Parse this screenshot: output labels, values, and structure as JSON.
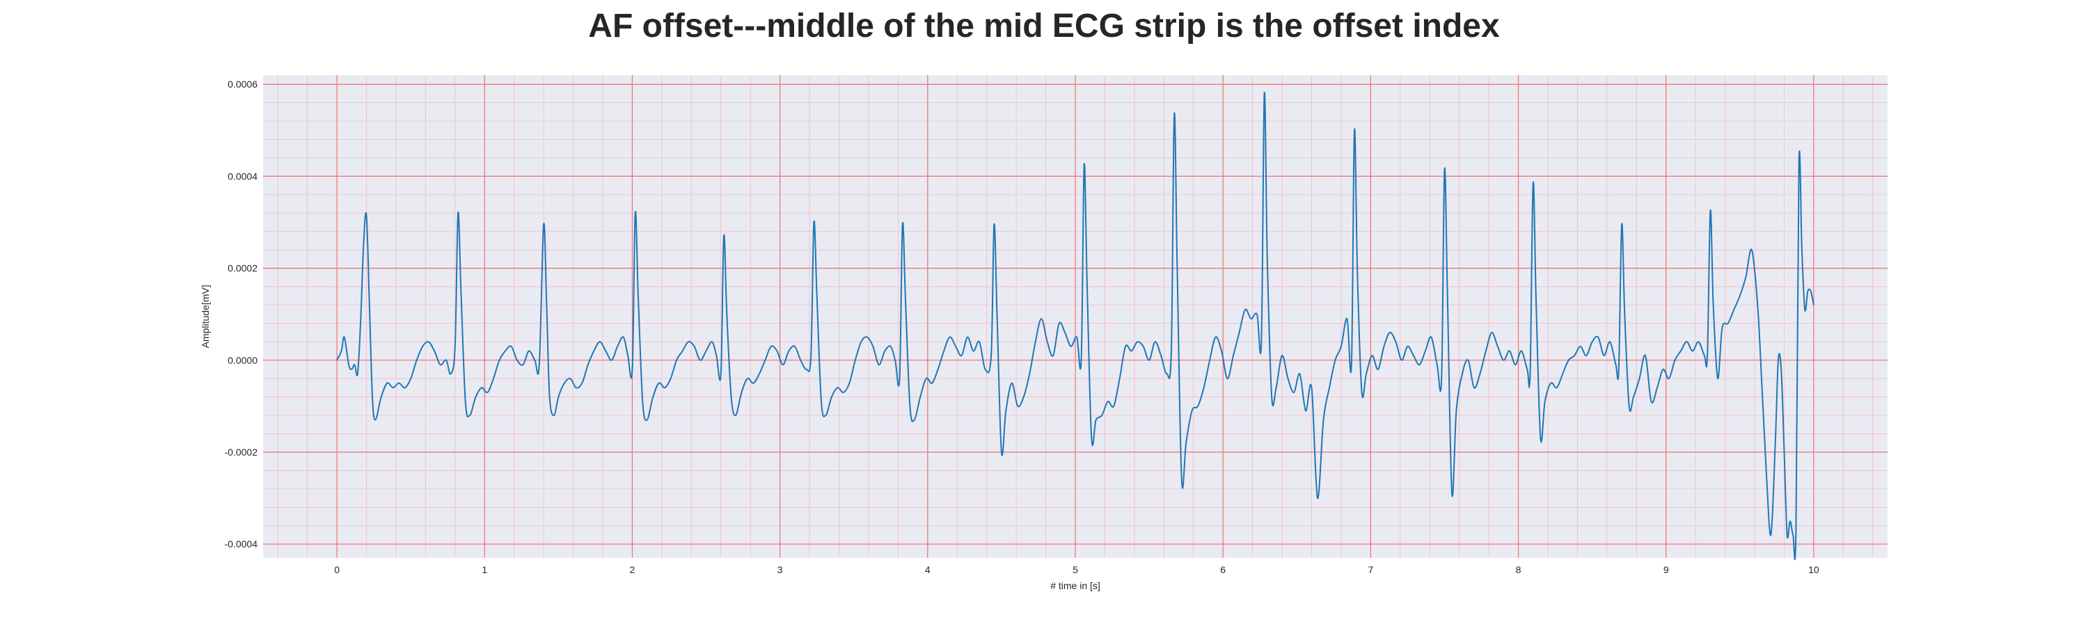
{
  "chart_data": {
    "type": "line",
    "title": "AF offset---middle of the mid ECG strip is the offset index",
    "xlabel": "# time in [s]",
    "ylabel": "Amplitude[mV]",
    "xlim": [
      -0.5,
      10.5
    ],
    "ylim": [
      -0.00043,
      0.00062
    ],
    "xticks": [
      0,
      1,
      2,
      3,
      4,
      5,
      6,
      7,
      8,
      9,
      10
    ],
    "xtick_labels": [
      "0",
      "1",
      "2",
      "3",
      "4",
      "5",
      "6",
      "7",
      "8",
      "9",
      "10"
    ],
    "yticks": [
      -0.0004,
      -0.0002,
      0.0,
      0.0002,
      0.0004,
      0.0006
    ],
    "ytick_labels": [
      "-0.0004",
      "-0.0002",
      "0.0000",
      "0.0002",
      "0.0004",
      "0.0006"
    ],
    "grid": true,
    "minor_grid": true,
    "legend": "none",
    "colors": {
      "line": "#1f77b4",
      "major_grid": "#f07070",
      "minor_grid": "#f5b8c4",
      "plot_bg": "#eaeaf2"
    },
    "r_peaks": [
      {
        "t": 0.2,
        "amp": 0.000315
      },
      {
        "t": 0.8,
        "amp": 0.00032
      },
      {
        "t": 1.4,
        "amp": 0.000295
      },
      {
        "t": 2.02,
        "amp": 0.00032
      },
      {
        "t": 2.62,
        "amp": 0.00027
      },
      {
        "t": 3.23,
        "amp": 0.0003
      },
      {
        "t": 3.83,
        "amp": 0.000295
      },
      {
        "t": 4.45,
        "amp": 0.000295
      },
      {
        "t": 5.06,
        "amp": 0.000425
      },
      {
        "t": 5.67,
        "amp": 0.000535
      },
      {
        "t": 6.28,
        "amp": 0.00058
      },
      {
        "t": 6.89,
        "amp": 0.0005
      },
      {
        "t": 7.5,
        "amp": 0.000415
      },
      {
        "t": 8.1,
        "amp": 0.000385
      },
      {
        "t": 8.7,
        "amp": 0.000295
      },
      {
        "t": 9.3,
        "amp": 0.000325
      },
      {
        "t": 9.88,
        "amp": 0.00043
      }
    ],
    "series": [
      {
        "x": [
          0.0,
          0.03,
          0.05,
          0.08,
          0.1,
          0.12,
          0.14,
          0.16,
          0.18,
          0.2,
          0.22,
          0.24,
          0.26,
          0.3,
          0.34,
          0.38,
          0.42,
          0.46,
          0.5,
          0.54,
          0.58,
          0.62,
          0.66,
          0.7,
          0.74,
          0.77,
          0.8,
          0.82,
          0.84,
          0.87,
          0.9,
          0.94,
          0.98,
          1.02,
          1.06,
          1.1,
          1.14,
          1.18,
          1.22,
          1.26,
          1.3,
          1.34,
          1.37,
          1.4,
          1.42,
          1.44,
          1.47,
          1.5,
          1.54,
          1.58,
          1.62,
          1.66,
          1.7,
          1.74,
          1.78,
          1.82,
          1.86,
          1.9,
          1.94,
          1.97,
          2.0,
          2.02,
          2.04,
          2.07,
          2.1,
          2.14,
          2.18,
          2.22,
          2.26,
          2.3,
          2.34,
          2.38,
          2.42,
          2.46,
          2.5,
          2.54,
          2.57,
          2.6,
          2.62,
          2.64,
          2.67,
          2.7,
          2.74,
          2.78,
          2.82,
          2.86,
          2.9,
          2.94,
          2.98,
          3.02,
          3.06,
          3.1,
          3.14,
          3.18,
          3.21,
          3.23,
          3.25,
          3.28,
          3.31,
          3.35,
          3.39,
          3.43,
          3.47,
          3.51,
          3.55,
          3.59,
          3.63,
          3.67,
          3.71,
          3.75,
          3.78,
          3.81,
          3.83,
          3.85,
          3.88,
          3.91,
          3.95,
          3.99,
          4.03,
          4.07,
          4.11,
          4.15,
          4.19,
          4.23,
          4.27,
          4.31,
          4.35,
          4.39,
          4.43,
          4.45,
          4.47,
          4.5,
          4.53,
          4.57,
          4.61,
          4.65,
          4.69,
          4.73,
          4.77,
          4.81,
          4.85,
          4.89,
          4.93,
          4.97,
          5.01,
          5.04,
          5.06,
          5.08,
          5.11,
          5.14,
          5.18,
          5.22,
          5.26,
          5.3,
          5.34,
          5.38,
          5.42,
          5.46,
          5.5,
          5.54,
          5.58,
          5.62,
          5.65,
          5.67,
          5.69,
          5.72,
          5.75,
          5.79,
          5.83,
          5.87,
          5.91,
          5.95,
          5.99,
          6.03,
          6.07,
          6.11,
          6.15,
          6.19,
          6.23,
          6.26,
          6.28,
          6.3,
          6.33,
          6.36,
          6.4,
          6.44,
          6.48,
          6.52,
          6.56,
          6.6,
          6.64,
          6.68,
          6.72,
          6.76,
          6.8,
          6.84,
          6.87,
          6.89,
          6.91,
          6.94,
          6.97,
          7.01,
          7.05,
          7.09,
          7.13,
          7.17,
          7.21,
          7.25,
          7.29,
          7.33,
          7.37,
          7.41,
          7.45,
          7.48,
          7.5,
          7.52,
          7.55,
          7.58,
          7.62,
          7.66,
          7.7,
          7.74,
          7.78,
          7.82,
          7.86,
          7.9,
          7.94,
          7.98,
          8.02,
          8.06,
          8.08,
          8.1,
          8.12,
          8.15,
          8.18,
          8.22,
          8.26,
          8.3,
          8.34,
          8.38,
          8.42,
          8.46,
          8.5,
          8.54,
          8.58,
          8.62,
          8.66,
          8.68,
          8.7,
          8.72,
          8.75,
          8.78,
          8.82,
          8.86,
          8.9,
          8.94,
          8.98,
          9.02,
          9.06,
          9.1,
          9.14,
          9.18,
          9.22,
          9.26,
          9.28,
          9.3,
          9.32,
          9.35,
          9.38,
          9.42,
          9.46,
          9.5,
          9.54,
          9.58,
          9.62,
          9.65,
          9.68,
          9.71,
          9.74,
          9.76,
          9.78,
          9.8,
          9.82,
          9.84,
          9.86,
          9.88,
          9.9,
          9.92,
          9.94,
          9.96,
          9.98,
          10.0
        ],
        "y": [
          0.0,
          2e-05,
          5e-05,
          -1e-05,
          -2e-05,
          -1e-05,
          -3e-05,
          8e-05,
          0.00025,
          0.000315,
          0.00012,
          -8e-05,
          -0.00013,
          -8e-05,
          -5e-05,
          -6e-05,
          -5e-05,
          -6e-05,
          -4e-05,
          0.0,
          3e-05,
          4e-05,
          2e-05,
          -1e-05,
          0.0,
          -3e-05,
          3e-05,
          0.00032,
          0.00015,
          -9e-05,
          -0.00012,
          -8e-05,
          -6e-05,
          -7e-05,
          -4e-05,
          0.0,
          2e-05,
          3e-05,
          0.0,
          -1e-05,
          2e-05,
          0.0,
          -1e-05,
          0.000295,
          0.00012,
          -8e-05,
          -0.00012,
          -8e-05,
          -5e-05,
          -4e-05,
          -6e-05,
          -5e-05,
          -1e-05,
          2e-05,
          4e-05,
          2e-05,
          0.0,
          3e-05,
          5e-05,
          1e-05,
          -2e-05,
          0.00032,
          0.00014,
          -9e-05,
          -0.00013,
          -8e-05,
          -5e-05,
          -6e-05,
          -4e-05,
          0.0,
          2e-05,
          4e-05,
          3e-05,
          0.0,
          2e-05,
          4e-05,
          1e-05,
          -3e-05,
          0.00027,
          0.0001,
          -8e-05,
          -0.00012,
          -7e-05,
          -4e-05,
          -5e-05,
          -3e-05,
          0.0,
          3e-05,
          2e-05,
          -1e-05,
          2e-05,
          3e-05,
          0.0,
          -2e-05,
          1e-05,
          0.0003,
          0.00014,
          -9e-05,
          -0.00012,
          -8e-05,
          -6e-05,
          -7e-05,
          -5e-05,
          0.0,
          4e-05,
          5e-05,
          3e-05,
          -1e-05,
          2e-05,
          3e-05,
          0.0,
          -4e-05,
          0.000295,
          0.00013,
          -0.0001,
          -0.00013,
          -8e-05,
          -4e-05,
          -5e-05,
          -2e-05,
          2e-05,
          5e-05,
          3e-05,
          1e-05,
          5e-05,
          2e-05,
          4e-05,
          -2e-05,
          1e-05,
          0.000295,
          0.0001,
          -0.0002,
          -0.00011,
          -5e-05,
          -0.0001,
          -8e-05,
          -3e-05,
          4e-05,
          9e-05,
          4e-05,
          1e-05,
          8e-05,
          6e-05,
          3e-05,
          5e-05,
          0.0,
          0.000425,
          0.00016,
          -0.00017,
          -0.00013,
          -0.00012,
          -9e-05,
          -0.0001,
          -4e-05,
          3e-05,
          2e-05,
          4e-05,
          3e-05,
          0.0,
          4e-05,
          1e-05,
          -3e-05,
          2e-05,
          0.000535,
          0.0002,
          -0.00026,
          -0.00018,
          -0.00011,
          -0.0001,
          -6e-05,
          0.0,
          5e-05,
          2e-05,
          -4e-05,
          1e-05,
          6e-05,
          0.00011,
          9e-05,
          0.0001,
          4e-05,
          0.00058,
          0.00022,
          -8e-05,
          -6e-05,
          1e-05,
          -4e-05,
          -7e-05,
          -3e-05,
          -0.00011,
          -6e-05,
          -0.0003,
          -0.00013,
          -6e-05,
          0.0,
          3e-05,
          9e-05,
          -1e-05,
          0.0005,
          0.00019,
          -7e-05,
          -3e-05,
          1e-05,
          -2e-05,
          3e-05,
          6e-05,
          4e-05,
          0.0,
          3e-05,
          1e-05,
          -1e-05,
          2e-05,
          5e-05,
          -1e-05,
          -4e-05,
          0.000415,
          0.00014,
          -0.00029,
          -0.00011,
          -3e-05,
          0.0,
          -6e-05,
          -3e-05,
          2e-05,
          6e-05,
          3e-05,
          0.0,
          2e-05,
          -1e-05,
          2e-05,
          -2e-05,
          -3e-05,
          0.000385,
          0.00013,
          -0.00017,
          -9e-05,
          -5e-05,
          -6e-05,
          -3e-05,
          0.0,
          1e-05,
          3e-05,
          1e-05,
          4e-05,
          5e-05,
          1e-05,
          4e-05,
          -1e-05,
          -2e-05,
          0.000295,
          0.0001,
          -0.0001,
          -8e-05,
          -4e-05,
          1e-05,
          -9e-05,
          -6e-05,
          -2e-05,
          -4e-05,
          0.0,
          2e-05,
          4e-05,
          2e-05,
          4e-05,
          1e-05,
          1e-05,
          0.000325,
          0.00012,
          -4e-05,
          7e-05,
          8e-05,
          0.00011,
          0.00014,
          0.00018,
          0.00024,
          0.00012,
          -6e-05,
          -0.00025,
          -0.00038,
          -0.00018,
          0.0,
          -2e-05,
          -0.0002,
          -0.00038,
          -0.00035,
          -0.00038,
          -0.00037,
          0.00043,
          0.00024,
          0.00011,
          0.00015,
          0.00015,
          0.00012
        ]
      }
    ]
  }
}
